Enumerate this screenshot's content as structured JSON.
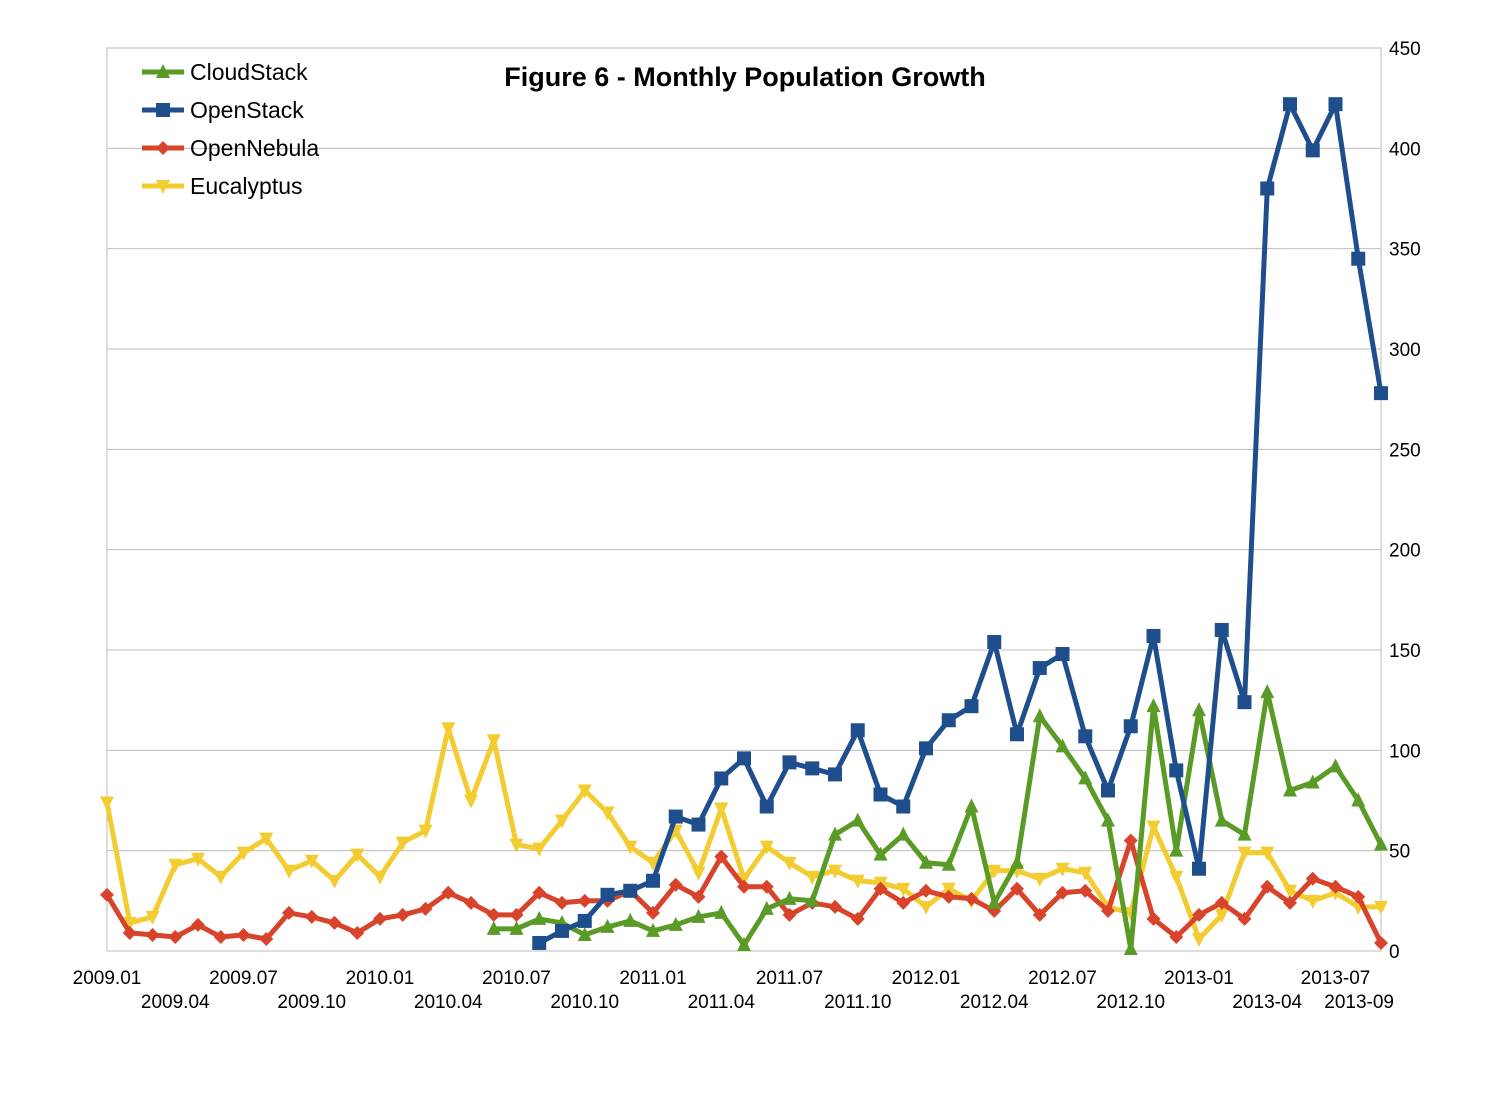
{
  "chart_data": {
    "type": "line",
    "title": "Figure 6 - Monthly Population Growth",
    "xlabel": "",
    "ylabel": "",
    "ylim": [
      0,
      450
    ],
    "yticks": [
      0,
      50,
      100,
      150,
      200,
      250,
      300,
      350,
      400,
      450
    ],
    "grid": true,
    "legend_position": "top-left",
    "x_months": 57,
    "xtick_labels": [
      {
        "index": 0,
        "label": "2009.01",
        "row": 0
      },
      {
        "index": 3,
        "label": "2009.04",
        "row": 1
      },
      {
        "index": 6,
        "label": "2009.07",
        "row": 0
      },
      {
        "index": 9,
        "label": "2009.10",
        "row": 1
      },
      {
        "index": 12,
        "label": "2010.01",
        "row": 0
      },
      {
        "index": 15,
        "label": "2010.04",
        "row": 1
      },
      {
        "index": 18,
        "label": "2010.07",
        "row": 0
      },
      {
        "index": 21,
        "label": "2010.10",
        "row": 1
      },
      {
        "index": 24,
        "label": "2011.01",
        "row": 0
      },
      {
        "index": 27,
        "label": "2011.04",
        "row": 1
      },
      {
        "index": 30,
        "label": "2011.07",
        "row": 0
      },
      {
        "index": 33,
        "label": "2011.10",
        "row": 1
      },
      {
        "index": 36,
        "label": "2012.01",
        "row": 0
      },
      {
        "index": 39,
        "label": "2012.04",
        "row": 1
      },
      {
        "index": 42,
        "label": "2012.07",
        "row": 0
      },
      {
        "index": 45,
        "label": "2012.10",
        "row": 1
      },
      {
        "index": 48,
        "label": "2013-01",
        "row": 0
      },
      {
        "index": 51,
        "label": "2013-04",
        "row": 1
      },
      {
        "index": 54,
        "label": "2013-07",
        "row": 0
      },
      {
        "index": 56,
        "label": "2013-09",
        "row": 1
      }
    ],
    "series": [
      {
        "name": "CloudStack",
        "color": "#5a9a26",
        "marker": "triangle-up",
        "start_index": 17,
        "values": [
          11,
          11,
          16,
          14,
          8,
          12,
          15,
          10,
          13,
          17,
          19,
          3,
          21,
          26,
          25,
          58,
          65,
          48,
          58,
          44,
          43,
          72,
          24,
          44,
          117,
          102,
          86,
          65,
          1,
          122,
          50,
          120,
          65,
          58,
          129,
          80,
          84,
          92,
          75,
          53
        ]
      },
      {
        "name": "OpenStack",
        "color": "#1f4e8c",
        "marker": "square",
        "start_index": 19,
        "values": [
          4,
          10,
          15,
          28,
          30,
          35,
          67,
          63,
          86,
          96,
          72,
          94,
          91,
          88,
          110,
          78,
          72,
          101,
          115,
          122,
          154,
          108,
          141,
          148,
          107,
          80,
          112,
          157,
          90,
          41,
          160,
          124,
          380,
          422,
          399,
          422,
          345,
          278
        ]
      },
      {
        "name": "OpenNebula",
        "color": "#d8442b",
        "marker": "diamond",
        "start_index": 0,
        "values": [
          28,
          9,
          8,
          7,
          13,
          7,
          8,
          6,
          19,
          17,
          14,
          9,
          16,
          18,
          21,
          29,
          24,
          18,
          18,
          29,
          24,
          25,
          25,
          30,
          19,
          33,
          27,
          47,
          32,
          32,
          18,
          24,
          22,
          16,
          31,
          24,
          30,
          27,
          26,
          20,
          31,
          18,
          29,
          30,
          20,
          55,
          16,
          7,
          18,
          24,
          16,
          32,
          24,
          36,
          32,
          27,
          4
        ]
      },
      {
        "name": "Eucalyptus",
        "color": "#f2cc31",
        "marker": "triangle-down",
        "start_index": 0,
        "values": [
          74,
          14,
          17,
          43,
          46,
          37,
          49,
          56,
          40,
          45,
          35,
          48,
          37,
          54,
          60,
          111,
          75,
          105,
          53,
          51,
          65,
          80,
          69,
          52,
          44,
          60,
          39,
          71,
          36,
          52,
          44,
          37,
          40,
          35,
          34,
          31,
          22,
          31,
          25,
          40,
          40,
          36,
          41,
          39,
          22,
          19,
          62,
          37,
          6,
          18,
          49,
          49,
          30,
          25,
          29,
          22,
          22
        ]
      }
    ]
  }
}
